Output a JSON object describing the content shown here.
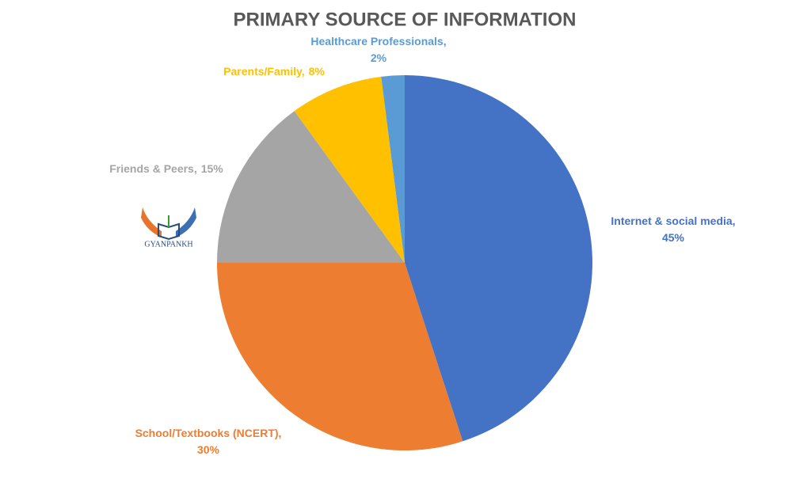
{
  "chart_data": {
    "type": "pie",
    "title": "PRIMARY SOURCE OF INFORMATION",
    "categories": [
      "Internet & social media,",
      "School/Textbooks (NCERT),",
      "Friends & Peers,",
      "Parents/Family,",
      "Healthcare Professionals,"
    ],
    "values": [
      45,
      30,
      15,
      8,
      2
    ],
    "value_labels": [
      "45%",
      "30%",
      "15%",
      "8%",
      "2%"
    ],
    "colors": [
      "#4472c4",
      "#ed7d31",
      "#a5a5a5",
      "#ffc000",
      "#5b9bd5"
    ]
  },
  "logo_text": "GYANPANKH"
}
